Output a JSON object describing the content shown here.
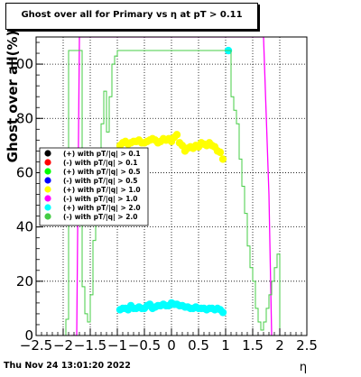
{
  "chart_data": {
    "type": "scatter",
    "title": "Ghost over all for Primary vs   η at pT > 0.11",
    "xlabel": "η",
    "ylabel": "Ghost over all(%)",
    "xlim": [
      -2.5,
      2.5
    ],
    "ylim": [
      0,
      110
    ],
    "x_ticks": [
      -2.5,
      -2,
      -1.5,
      -1,
      -0.5,
      0,
      0.5,
      1,
      1.5,
      2,
      2.5
    ],
    "x_tick_labels": [
      "−2.5",
      "−2",
      "−1.5",
      "−1",
      "−0.5",
      "0",
      "0.5",
      "1",
      "1.5",
      "2",
      "2.5"
    ],
    "y_ticks": [
      0,
      20,
      40,
      60,
      80,
      100
    ],
    "y_tick_labels": [
      "0",
      "20",
      "40",
      "60",
      "80",
      "100"
    ],
    "grid": true,
    "legend_position": "left-middle",
    "series": [
      {
        "name": "(+) with pT/|q| > 0.1",
        "style": "points",
        "color": "#000000",
        "x": [],
        "y": []
      },
      {
        "name": "(-) with pT/|q| > 0.1",
        "style": "points",
        "color": "#ff0000",
        "x": [],
        "y": []
      },
      {
        "name": "(+) with pT/|q| > 0.5",
        "style": "points",
        "color": "#00ff00",
        "x": [],
        "y": []
      },
      {
        "name": "(-) with pT/|q| > 0.5",
        "style": "points",
        "color": "#0000ff",
        "x": [],
        "y": []
      },
      {
        "name": "(+) with pT/|q| > 1.0",
        "style": "points",
        "color": "#ffff00",
        "x": [
          -0.95,
          -0.9,
          -0.85,
          -0.8,
          -0.75,
          -0.7,
          -0.65,
          -0.6,
          -0.55,
          -0.5,
          -0.45,
          -0.4,
          -0.35,
          -0.3,
          -0.25,
          -0.2,
          -0.15,
          -0.1,
          -0.05,
          0.0,
          0.05,
          0.1,
          0.15,
          0.2,
          0.25,
          0.3,
          0.35,
          0.4,
          0.45,
          0.5,
          0.55,
          0.6,
          0.65,
          0.7,
          0.75,
          0.8,
          0.85,
          0.9,
          0.95
        ],
        "y": [
          70.0,
          71.0,
          71.5,
          70.5,
          71.0,
          71.5,
          71.5,
          72.0,
          71.0,
          71.0,
          71.5,
          72.0,
          72.5,
          72.0,
          71.0,
          71.5,
          72.5,
          72.0,
          72.5,
          71.5,
          73.0,
          74.0,
          71.0,
          70.0,
          68.0,
          69.0,
          69.5,
          69.0,
          70.0,
          69.5,
          71.0,
          70.5,
          70.0,
          71.0,
          70.0,
          69.5,
          68.0,
          67.5,
          65.0
        ]
      },
      {
        "name": "(-) with pT/|q| > 1.0",
        "style": "line",
        "color": "#ff00ff",
        "x": [
          -1.85,
          -1.75,
          -1.7,
          1.7,
          1.8,
          1.85
        ],
        "y": [
          0,
          0,
          110,
          110,
          52,
          0
        ]
      },
      {
        "name": "(+) with pT/|q| > 2.0",
        "style": "points",
        "color": "#00ffff",
        "x": [
          -0.95,
          -0.9,
          -0.85,
          -0.8,
          -0.75,
          -0.7,
          -0.65,
          -0.6,
          -0.55,
          -0.5,
          -0.45,
          -0.4,
          -0.35,
          -0.3,
          -0.25,
          -0.2,
          -0.15,
          -0.1,
          -0.05,
          0.0,
          0.05,
          0.1,
          0.15,
          0.2,
          0.25,
          0.3,
          0.35,
          0.4,
          0.45,
          0.5,
          0.55,
          0.6,
          0.65,
          0.7,
          0.75,
          0.8,
          0.85,
          0.9,
          0.95,
          1.05
        ],
        "y": [
          9.5,
          10.0,
          10.0,
          9.5,
          11.0,
          10.0,
          10.0,
          10.5,
          10.0,
          10.0,
          11.0,
          11.5,
          10.0,
          10.5,
          11.0,
          11.0,
          11.5,
          11.0,
          11.0,
          12.0,
          11.5,
          11.5,
          11.0,
          11.0,
          10.5,
          10.5,
          10.0,
          10.0,
          10.5,
          10.0,
          10.0,
          10.0,
          9.5,
          10.0,
          10.0,
          9.5,
          10.0,
          9.5,
          8.5,
          105.0
        ]
      },
      {
        "name": "(-) with pT/|q| > 2.0",
        "style": "step",
        "color": "#44cc44",
        "x": [
          -2.0,
          -1.95,
          -1.9,
          -1.85,
          -1.8,
          -1.75,
          -1.7,
          -1.65,
          -1.6,
          -1.55,
          -1.5,
          -1.45,
          -1.4,
          -1.35,
          -1.3,
          -1.25,
          -1.2,
          -1.15,
          -1.1,
          -1.05,
          -1.0,
          1.0,
          1.05,
          1.1,
          1.15,
          1.2,
          1.25,
          1.3,
          1.35,
          1.4,
          1.45,
          1.5,
          1.55,
          1.6,
          1.65,
          1.7,
          1.75,
          1.8,
          1.85,
          1.9,
          1.95,
          2.0
        ],
        "y": [
          0,
          6,
          105,
          105,
          105,
          105,
          105,
          18,
          8,
          5,
          15,
          35,
          45,
          60,
          78,
          90,
          75,
          88,
          100,
          103,
          105,
          105,
          105,
          88,
          83,
          78,
          65,
          55,
          45,
          33,
          25,
          20,
          10,
          5,
          2,
          5,
          10,
          15,
          20,
          25,
          30,
          0
        ]
      }
    ]
  },
  "footer": {
    "timestamp": "Thu Nov 24 13:01:20 2022"
  }
}
